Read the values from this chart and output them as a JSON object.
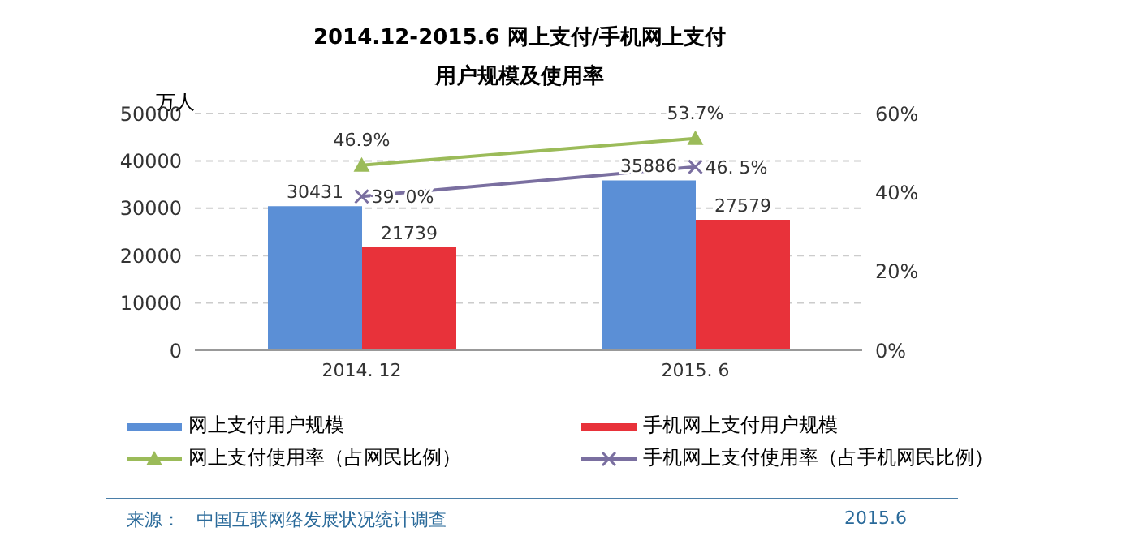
{
  "chart_data": {
    "type": "bar",
    "title": "2014.12-2015.6 网上支付/手机网上支付",
    "subtitle": "用户规模及使用率",
    "ylabel": "万人",
    "categories": [
      "2014. 12",
      "2015. 6"
    ],
    "series": [
      {
        "name": "网上支付用户规模",
        "color": "#5b8fd6",
        "values": [
          30431,
          35886
        ],
        "value_labels": [
          "30431",
          "35886"
        ]
      },
      {
        "name": "手机网上支付用户规模",
        "color": "#e8323a",
        "values": [
          21739,
          27579
        ],
        "value_labels": [
          "21739",
          "27579"
        ]
      },
      {
        "name": "网上支付使用率（占网民比例）",
        "type": "line",
        "axis": "y2",
        "color": "#9bbb59",
        "marker": "triangle",
        "values": [
          46.9,
          53.7
        ],
        "value_labels": [
          "46.9%",
          "53.7%"
        ]
      },
      {
        "name": "手机网上支付使用率（占手机网民比例）",
        "type": "line",
        "axis": "y2",
        "color": "#7a6fa0",
        "marker": "cross",
        "values": [
          39.0,
          46.5
        ],
        "value_labels": [
          "39. 0%",
          "46. 5%"
        ]
      }
    ],
    "ylim": [
      0,
      50000
    ],
    "yticks": [
      0,
      10000,
      20000,
      30000,
      40000,
      50000
    ],
    "y2lim": [
      0,
      60
    ],
    "y2ticks": [
      {
        "value": 0,
        "label": "0%"
      },
      {
        "value": 20,
        "label": "20%"
      },
      {
        "value": 40,
        "label": "40%"
      },
      {
        "value": 60,
        "label": "60%"
      }
    ],
    "grid": "y",
    "legend": "bottom",
    "annotations": [
      "来源：",
      "中国互联网络发展状况统计调查",
      "2015.6"
    ]
  }
}
